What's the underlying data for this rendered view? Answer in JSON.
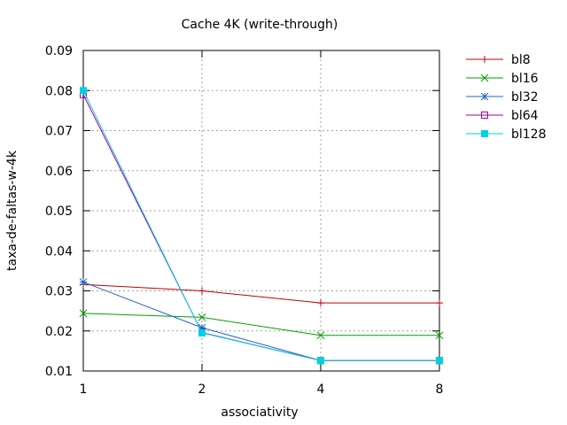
{
  "chart_data": {
    "type": "line",
    "title": "Cache 4K (write-through)",
    "xlabel": "associativity",
    "ylabel": "taxa-de-faltas-w-4k",
    "x": [
      1,
      2,
      4,
      8
    ],
    "x_scale": "log2",
    "x_ticks": [
      "1",
      "2",
      "4",
      "8"
    ],
    "ylim": [
      0.01,
      0.09
    ],
    "y_ticks": [
      "0.01",
      "0.02",
      "0.03",
      "0.04",
      "0.05",
      "0.06",
      "0.07",
      "0.08",
      "0.09"
    ],
    "grid": true,
    "legend_position": "right-outside-top",
    "series": [
      {
        "name": "bl8",
        "color": "#c00000",
        "marker": "plus",
        "values": [
          0.0316,
          0.03,
          0.027,
          0.027
        ]
      },
      {
        "name": "bl16",
        "color": "#00a000",
        "marker": "cross",
        "values": [
          0.0244,
          0.0234,
          0.0189,
          0.0189
        ]
      },
      {
        "name": "bl32",
        "color": "#1e64c8",
        "marker": "star",
        "values": [
          0.0322,
          0.0208,
          0.0126,
          0.0126
        ]
      },
      {
        "name": "bl64",
        "color": "#a000a0",
        "marker": "open-square",
        "values": [
          0.079,
          0.0196,
          0.0126,
          0.0126
        ]
      },
      {
        "name": "bl128",
        "color": "#00d0e0",
        "marker": "filled-square",
        "values": [
          0.08,
          0.0195,
          0.0126,
          0.0126
        ]
      }
    ]
  }
}
